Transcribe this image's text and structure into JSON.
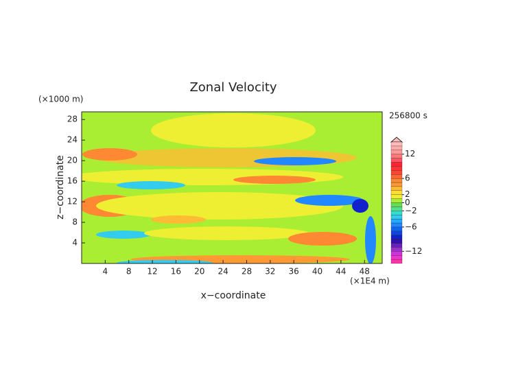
{
  "chart_data": {
    "type": "contour",
    "title": "Zonal Velocity",
    "y_unit": "(×1000 m)",
    "time_label": "256800 s",
    "x_label": "x−coordinate",
    "y_label": "z−coordinate",
    "x_unit": "(×1E4 m)",
    "xlim": [
      0,
      51
    ],
    "xticks": [
      4,
      8,
      12,
      16,
      20,
      24,
      28,
      32,
      36,
      40,
      44,
      48
    ],
    "ylim": [
      0,
      29.5
    ],
    "yticks": [
      4,
      8,
      12,
      16,
      20,
      24,
      28
    ],
    "colorbar": {
      "lim": [
        -15,
        15
      ],
      "ticks": [
        {
          "value": -12,
          "label": "−12"
        },
        {
          "value": -6,
          "label": "−6"
        },
        {
          "value": -2,
          "label": "−2"
        },
        0,
        2,
        6,
        12
      ],
      "colors": [
        "#ff33aa",
        "#ee33cc",
        "#cc33dd",
        "#9933cc",
        "#6622bb",
        "#3311aa",
        "#1122cc",
        "#1144dd",
        "#1166ee",
        "#2288ff",
        "#22aaff",
        "#33ccee",
        "#33ddcc",
        "#55dd88",
        "#66dd55",
        "#aaee33",
        "#eeee33",
        "#ffdd33",
        "#ffbb33",
        "#ff9933",
        "#ff8833",
        "#ff6633",
        "#ff4433",
        "#ff3333",
        "#ff2233",
        "#ff5566",
        "#ff7777",
        "#ff9999",
        "#ffaaaa",
        "#ffbbbb"
      ]
    }
  }
}
